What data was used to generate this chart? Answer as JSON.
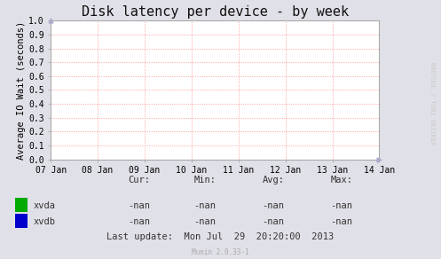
{
  "title": "Disk latency per device - by week",
  "ylabel": "Average IO Wait (seconds)",
  "bg_color": "#e0e0e8",
  "plot_bg_color": "#ffffff",
  "grid_color": "#ff9999",
  "grid_style": ":",
  "border_color": "#aaaaaa",
  "ylim": [
    0.0,
    1.0
  ],
  "yticks": [
    0.0,
    0.1,
    0.2,
    0.3,
    0.4,
    0.5,
    0.6,
    0.7,
    0.8,
    0.9,
    1.0
  ],
  "xtick_labels": [
    "07 Jan",
    "08 Jan",
    "09 Jan",
    "10 Jan",
    "11 Jan",
    "12 Jan",
    "13 Jan",
    "14 Jan"
  ],
  "legend_entries": [
    {
      "label": "xvda",
      "color": "#00aa00"
    },
    {
      "label": "xvdb",
      "color": "#0000cc"
    }
  ],
  "stats_header": [
    "Cur:",
    "Min:",
    "Avg:",
    "Max:"
  ],
  "stats_xvda": [
    "-nan",
    "-nan",
    "-nan",
    "-nan"
  ],
  "stats_xvdb": [
    "-nan",
    "-nan",
    "-nan",
    "-nan"
  ],
  "last_update": "Last update:  Mon Jul  29  20:20:00  2013",
  "munin_version": "Munin 2.0.33-1",
  "rrdtool_label": "RRDTOOL / TOBI OETIKER",
  "title_fontsize": 11,
  "axis_label_fontsize": 7.5,
  "tick_fontsize": 7,
  "stats_fontsize": 7.5
}
